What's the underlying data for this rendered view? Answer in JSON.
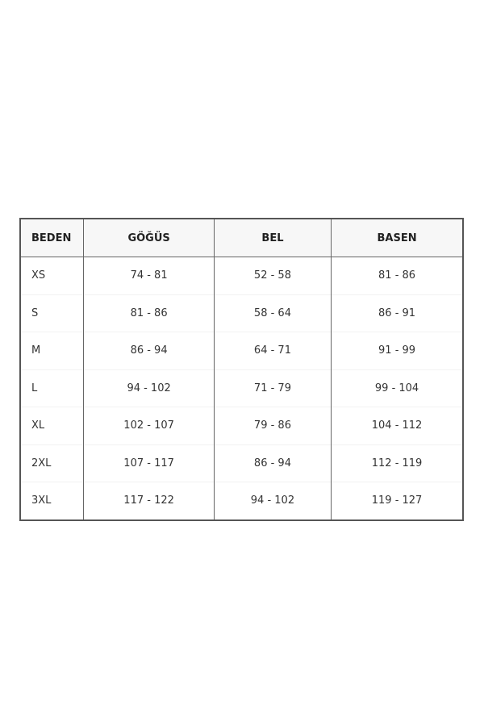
{
  "size_table": {
    "headers": [
      "BEDEN",
      "GÖĞÜS",
      "BEL",
      "BASEN"
    ],
    "rows": [
      [
        "XS",
        "74 - 81",
        "52 - 58",
        "81 - 86"
      ],
      [
        "S",
        "81 - 86",
        "58 - 64",
        "86 - 91"
      ],
      [
        "M",
        "86 - 94",
        "64 - 71",
        "91 - 99"
      ],
      [
        "L",
        "94 - 102",
        "71 - 79",
        "99 - 104"
      ],
      [
        "XL",
        "102 - 107",
        "79 - 86",
        "104 - 112"
      ],
      [
        "2XL",
        "107 - 117",
        "86 - 94",
        "112 - 119"
      ],
      [
        "3XL",
        "117 - 122",
        "94 - 102",
        "119 - 127"
      ]
    ]
  }
}
